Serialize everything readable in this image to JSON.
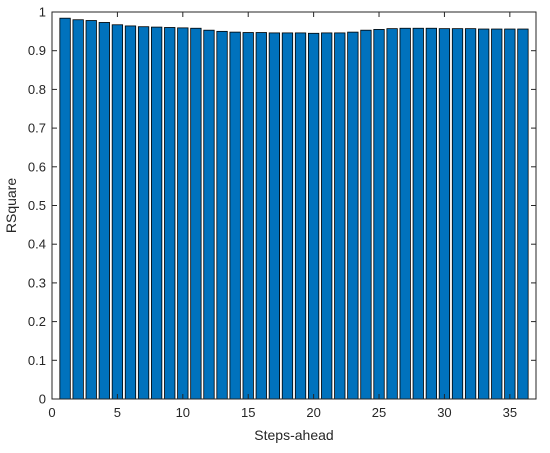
{
  "chart_data": {
    "type": "bar",
    "xlabel": "Steps-ahead",
    "ylabel": "RSquare",
    "xlim": [
      0,
      37
    ],
    "ylim": [
      0,
      1
    ],
    "x_ticks": [
      0,
      5,
      10,
      15,
      20,
      25,
      30,
      35
    ],
    "y_ticks": [
      0,
      0.1,
      0.2,
      0.3,
      0.4,
      0.5,
      0.6,
      0.7,
      0.8,
      0.9,
      1
    ],
    "x_tick_labels": [
      "0",
      "5",
      "10",
      "15",
      "20",
      "25",
      "30",
      "35"
    ],
    "y_tick_labels": [
      "0",
      "0.1",
      "0.2",
      "0.3",
      "0.4",
      "0.5",
      "0.6",
      "0.7",
      "0.8",
      "0.9",
      "1"
    ],
    "grid": false,
    "bar_color": "#0072BD",
    "bar_edge_color": "#000000",
    "categories": [
      1,
      2,
      3,
      4,
      5,
      6,
      7,
      8,
      9,
      10,
      11,
      12,
      13,
      14,
      15,
      16,
      17,
      18,
      19,
      20,
      21,
      22,
      23,
      24,
      25,
      26,
      27,
      28,
      29,
      30,
      31,
      32,
      33,
      34,
      35,
      36
    ],
    "values": [
      0.984,
      0.98,
      0.978,
      0.973,
      0.967,
      0.964,
      0.962,
      0.961,
      0.96,
      0.959,
      0.958,
      0.953,
      0.95,
      0.948,
      0.947,
      0.947,
      0.946,
      0.946,
      0.946,
      0.945,
      0.946,
      0.946,
      0.948,
      0.953,
      0.955,
      0.957,
      0.958,
      0.958,
      0.958,
      0.957,
      0.957,
      0.957,
      0.956,
      0.956,
      0.956,
      0.956
    ]
  }
}
